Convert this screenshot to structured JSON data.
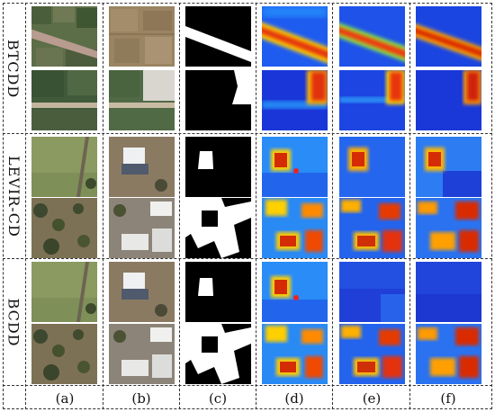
{
  "row_groups": [
    "BTCDD",
    "LEVIR-CD",
    "BCDD"
  ],
  "columns": [
    "(a)",
    "(b)",
    "(c)",
    "(d)",
    "(e)",
    "(f)"
  ],
  "colors": {
    "heat_low": "#1a2bd9",
    "heat_mid": "#24c6ff",
    "heat_high": "#ff3a00",
    "mask_bg": "#000000",
    "mask_fg": "#ffffff"
  }
}
